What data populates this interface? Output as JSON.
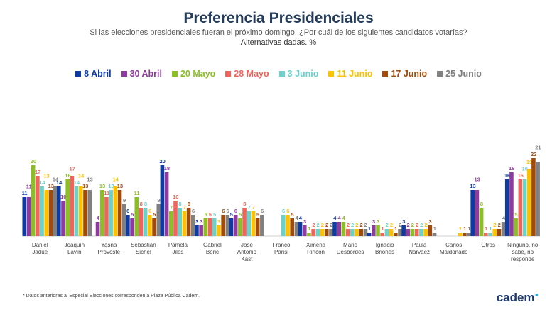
{
  "chart_data": {
    "type": "bar",
    "title": "Preferencia Presidenciales",
    "subtitle": "Si las elecciones presidenciales fueran el próximo domingo, ¿Por cuál de los siguientes candidatos votarías?",
    "note": "Alternativas dadas. %",
    "legend_position": "top",
    "grid": false,
    "ylim": [
      0,
      23
    ],
    "categories": [
      "Daniel Jadue",
      "Joaquín Lavín",
      "Yasna Provoste",
      "Sebastián Sichel",
      "Pamela Jiles",
      "Gabriel Boric",
      "José Antonio Kast",
      "Franco Parisi",
      "Ximena Rincón",
      "Mario Desbordes",
      "Ignacio Briones",
      "Paula Narváez",
      "Carlos Maldonado",
      "Otros",
      "Ninguno, no sabe, no responde"
    ],
    "series": [
      {
        "name": "8 Abril",
        "color": "#0d3aa3",
        "values": [
          11,
          14,
          null,
          6,
          20,
          3,
          5,
          null,
          4,
          4,
          1,
          3,
          null,
          13,
          16
        ]
      },
      {
        "name": "30 Abril",
        "color": "#8e3aa0",
        "values": [
          11,
          10,
          4,
          5,
          18,
          3,
          6,
          null,
          3,
          4,
          3,
          2,
          null,
          13,
          18
        ]
      },
      {
        "name": "20 Mayo",
        "color": "#8cbf26",
        "values": [
          20,
          16,
          13,
          11,
          7,
          5,
          5,
          null,
          1,
          4,
          3,
          2,
          null,
          8,
          5
        ]
      },
      {
        "name": "28 Mayo",
        "color": "#f0645c",
        "values": [
          17,
          17,
          11,
          8,
          10,
          5,
          8,
          null,
          2,
          2,
          1,
          2,
          null,
          1,
          16
        ]
      },
      {
        "name": "3 Junio",
        "color": "#6ad2c8",
        "values": [
          14,
          14,
          13,
          8,
          8,
          5,
          7,
          6,
          2,
          2,
          2,
          2,
          null,
          1,
          16
        ]
      },
      {
        "name": "11 Junio",
        "color": "#ffc000",
        "values": [
          13,
          14,
          14,
          6,
          7,
          3,
          7,
          6,
          2,
          2,
          2,
          2,
          1,
          2,
          19
        ]
      },
      {
        "name": "17 Junio",
        "color": "#a04a0c",
        "values": [
          13,
          13,
          13,
          5,
          8,
          6,
          5,
          5,
          2,
          2,
          1,
          3,
          1,
          2,
          22
        ]
      },
      {
        "name": "25 Junio",
        "color": "#808080",
        "values": [
          14,
          13,
          9,
          9,
          6,
          6,
          6,
          4,
          2,
          2,
          2,
          1,
          1,
          4,
          21
        ]
      }
    ]
  },
  "footer": "* Datos anteriores al Especial Elecciones corresponden a Plaza Pública Cadem.",
  "logo": "cadem"
}
